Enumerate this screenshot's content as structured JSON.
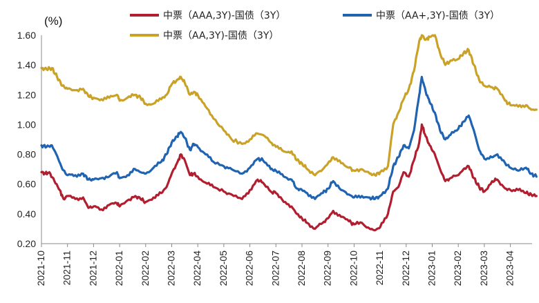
{
  "chart_data": {
    "type": "line",
    "unit_label": "(%)",
    "ylim": [
      0.2,
      1.6
    ],
    "yticks": [
      "0.20",
      "0.40",
      "0.60",
      "0.80",
      "1.00",
      "1.20",
      "1.40",
      "1.60"
    ],
    "x_categories": [
      "2021-10",
      "2021-11",
      "2021-12",
      "2022-01",
      "2022-02",
      "2022-03",
      "2022-04",
      "2022-05",
      "2022-06",
      "2022-07",
      "2022-08",
      "2022-09",
      "2022-10",
      "2022-11",
      "2022-12",
      "2023-01",
      "2023-02",
      "2023-03",
      "2023-04"
    ],
    "grid": false,
    "legend_position": "top",
    "series": [
      {
        "name": "中票（AAA,3Y)-国债（3Y）",
        "color": "#B01E2F",
        "points": [
          [
            0,
            0.68
          ],
          [
            0.15,
            0.67
          ],
          [
            0.3,
            0.68
          ],
          [
            0.5,
            0.62
          ],
          [
            0.7,
            0.56
          ],
          [
            0.85,
            0.5
          ],
          [
            1.0,
            0.52
          ],
          [
            1.3,
            0.5
          ],
          [
            1.6,
            0.51
          ],
          [
            1.8,
            0.44
          ],
          [
            2.0,
            0.45
          ],
          [
            2.3,
            0.43
          ],
          [
            2.6,
            0.46
          ],
          [
            2.9,
            0.47
          ],
          [
            3.0,
            0.45
          ],
          [
            3.3,
            0.49
          ],
          [
            3.6,
            0.52
          ],
          [
            3.8,
            0.5
          ],
          [
            4.0,
            0.48
          ],
          [
            4.3,
            0.51
          ],
          [
            4.6,
            0.54
          ],
          [
            4.8,
            0.58
          ],
          [
            5.0,
            0.67
          ],
          [
            5.2,
            0.74
          ],
          [
            5.35,
            0.8
          ],
          [
            5.5,
            0.76
          ],
          [
            5.7,
            0.66
          ],
          [
            5.85,
            0.67
          ],
          [
            6.0,
            0.65
          ],
          [
            6.3,
            0.61
          ],
          [
            6.6,
            0.58
          ],
          [
            7.0,
            0.55
          ],
          [
            7.3,
            0.53
          ],
          [
            7.7,
            0.5
          ],
          [
            8.0,
            0.56
          ],
          [
            8.3,
            0.63
          ],
          [
            8.5,
            0.61
          ],
          [
            8.8,
            0.55
          ],
          [
            9.0,
            0.54
          ],
          [
            9.3,
            0.48
          ],
          [
            9.6,
            0.45
          ],
          [
            9.8,
            0.4
          ],
          [
            10.0,
            0.37
          ],
          [
            10.2,
            0.34
          ],
          [
            10.5,
            0.3
          ],
          [
            10.8,
            0.34
          ],
          [
            11.0,
            0.37
          ],
          [
            11.2,
            0.42
          ],
          [
            11.5,
            0.38
          ],
          [
            11.8,
            0.35
          ],
          [
            12.0,
            0.33
          ],
          [
            12.3,
            0.34
          ],
          [
            12.6,
            0.3
          ],
          [
            12.8,
            0.29
          ],
          [
            13.0,
            0.31
          ],
          [
            13.3,
            0.4
          ],
          [
            13.5,
            0.55
          ],
          [
            13.7,
            0.58
          ],
          [
            13.9,
            0.68
          ],
          [
            14.1,
            0.65
          ],
          [
            14.3,
            0.76
          ],
          [
            14.5,
            0.88
          ],
          [
            14.6,
            1.0
          ],
          [
            14.75,
            0.92
          ],
          [
            14.9,
            0.86
          ],
          [
            15.1,
            0.8
          ],
          [
            15.3,
            0.7
          ],
          [
            15.5,
            0.62
          ],
          [
            15.7,
            0.64
          ],
          [
            16.0,
            0.66
          ],
          [
            16.2,
            0.7
          ],
          [
            16.4,
            0.72
          ],
          [
            16.6,
            0.64
          ],
          [
            16.8,
            0.58
          ],
          [
            17.0,
            0.55
          ],
          [
            17.3,
            0.62
          ],
          [
            17.5,
            0.63
          ],
          [
            17.8,
            0.57
          ],
          [
            18.0,
            0.56
          ],
          [
            18.3,
            0.56
          ],
          [
            18.6,
            0.54
          ],
          [
            18.8,
            0.53
          ],
          [
            19.0,
            0.52
          ]
        ]
      },
      {
        "name": "中票（AA+,3Y)-国债（3Y）",
        "color": "#1F63B1",
        "points": [
          [
            0,
            0.86
          ],
          [
            0.2,
            0.85
          ],
          [
            0.4,
            0.86
          ],
          [
            0.6,
            0.79
          ],
          [
            0.8,
            0.7
          ],
          [
            1.0,
            0.66
          ],
          [
            1.3,
            0.66
          ],
          [
            1.6,
            0.67
          ],
          [
            1.8,
            0.63
          ],
          [
            2.0,
            0.63
          ],
          [
            2.3,
            0.64
          ],
          [
            2.6,
            0.65
          ],
          [
            2.9,
            0.68
          ],
          [
            3.0,
            0.64
          ],
          [
            3.3,
            0.66
          ],
          [
            3.6,
            0.7
          ],
          [
            3.8,
            0.68
          ],
          [
            4.0,
            0.67
          ],
          [
            4.3,
            0.71
          ],
          [
            4.6,
            0.75
          ],
          [
            4.8,
            0.8
          ],
          [
            5.0,
            0.88
          ],
          [
            5.2,
            0.92
          ],
          [
            5.35,
            0.95
          ],
          [
            5.5,
            0.91
          ],
          [
            5.7,
            0.83
          ],
          [
            5.85,
            0.87
          ],
          [
            6.0,
            0.85
          ],
          [
            6.3,
            0.8
          ],
          [
            6.6,
            0.75
          ],
          [
            7.0,
            0.72
          ],
          [
            7.3,
            0.7
          ],
          [
            7.7,
            0.67
          ],
          [
            8.0,
            0.71
          ],
          [
            8.3,
            0.77
          ],
          [
            8.5,
            0.76
          ],
          [
            8.8,
            0.7
          ],
          [
            9.0,
            0.69
          ],
          [
            9.3,
            0.65
          ],
          [
            9.6,
            0.63
          ],
          [
            9.8,
            0.57
          ],
          [
            10.0,
            0.56
          ],
          [
            10.2,
            0.54
          ],
          [
            10.5,
            0.5
          ],
          [
            10.8,
            0.54
          ],
          [
            11.0,
            0.57
          ],
          [
            11.2,
            0.62
          ],
          [
            11.5,
            0.56
          ],
          [
            11.8,
            0.53
          ],
          [
            12.0,
            0.51
          ],
          [
            12.3,
            0.52
          ],
          [
            12.6,
            0.51
          ],
          [
            12.8,
            0.5
          ],
          [
            13.0,
            0.52
          ],
          [
            13.3,
            0.57
          ],
          [
            13.5,
            0.72
          ],
          [
            13.7,
            0.78
          ],
          [
            13.9,
            0.86
          ],
          [
            14.1,
            0.84
          ],
          [
            14.3,
            0.96
          ],
          [
            14.5,
            1.2
          ],
          [
            14.6,
            1.32
          ],
          [
            14.75,
            1.22
          ],
          [
            14.9,
            1.15
          ],
          [
            15.1,
            1.08
          ],
          [
            15.3,
            0.96
          ],
          [
            15.5,
            0.9
          ],
          [
            15.7,
            0.93
          ],
          [
            16.0,
            0.97
          ],
          [
            16.2,
            1.02
          ],
          [
            16.4,
            1.06
          ],
          [
            16.6,
            0.96
          ],
          [
            16.8,
            0.83
          ],
          [
            17.0,
            0.77
          ],
          [
            17.3,
            0.78
          ],
          [
            17.5,
            0.8
          ],
          [
            17.8,
            0.74
          ],
          [
            18.0,
            0.71
          ],
          [
            18.3,
            0.69
          ],
          [
            18.6,
            0.71
          ],
          [
            18.8,
            0.67
          ],
          [
            19.0,
            0.65
          ]
        ]
      },
      {
        "name": "中票（AA,3Y)-国债（3Y）",
        "color": "#C9A227",
        "points": [
          [
            0,
            1.38
          ],
          [
            0.2,
            1.37
          ],
          [
            0.4,
            1.38
          ],
          [
            0.6,
            1.32
          ],
          [
            0.8,
            1.26
          ],
          [
            1.0,
            1.24
          ],
          [
            1.3,
            1.23
          ],
          [
            1.6,
            1.24
          ],
          [
            1.8,
            1.19
          ],
          [
            2.0,
            1.18
          ],
          [
            2.3,
            1.17
          ],
          [
            2.6,
            1.18
          ],
          [
            2.9,
            1.2
          ],
          [
            3.0,
            1.16
          ],
          [
            3.3,
            1.18
          ],
          [
            3.6,
            1.2
          ],
          [
            3.8,
            1.18
          ],
          [
            4.0,
            1.14
          ],
          [
            4.3,
            1.14
          ],
          [
            4.6,
            1.17
          ],
          [
            4.8,
            1.2
          ],
          [
            5.0,
            1.27
          ],
          [
            5.2,
            1.3
          ],
          [
            5.35,
            1.32
          ],
          [
            5.5,
            1.28
          ],
          [
            5.7,
            1.2
          ],
          [
            5.85,
            1.22
          ],
          [
            6.0,
            1.2
          ],
          [
            6.3,
            1.12
          ],
          [
            6.6,
            1.04
          ],
          [
            7.0,
            0.96
          ],
          [
            7.3,
            0.9
          ],
          [
            7.7,
            0.87
          ],
          [
            8.0,
            0.9
          ],
          [
            8.3,
            0.94
          ],
          [
            8.5,
            0.93
          ],
          [
            8.8,
            0.88
          ],
          [
            9.0,
            0.85
          ],
          [
            9.3,
            0.82
          ],
          [
            9.6,
            0.82
          ],
          [
            9.8,
            0.76
          ],
          [
            10.0,
            0.74
          ],
          [
            10.2,
            0.7
          ],
          [
            10.5,
            0.66
          ],
          [
            10.8,
            0.7
          ],
          [
            11.0,
            0.74
          ],
          [
            11.2,
            0.78
          ],
          [
            11.5,
            0.74
          ],
          [
            11.8,
            0.71
          ],
          [
            12.0,
            0.69
          ],
          [
            12.3,
            0.7
          ],
          [
            12.6,
            0.67
          ],
          [
            12.8,
            0.66
          ],
          [
            13.0,
            0.68
          ],
          [
            13.3,
            0.72
          ],
          [
            13.5,
            1.0
          ],
          [
            13.7,
            1.08
          ],
          [
            13.9,
            1.17
          ],
          [
            14.1,
            1.24
          ],
          [
            14.3,
            1.36
          ],
          [
            14.5,
            1.56
          ],
          [
            14.6,
            1.6
          ],
          [
            14.75,
            1.57
          ],
          [
            14.9,
            1.59
          ],
          [
            15.1,
            1.6
          ],
          [
            15.3,
            1.48
          ],
          [
            15.5,
            1.4
          ],
          [
            15.7,
            1.43
          ],
          [
            16.0,
            1.44
          ],
          [
            16.2,
            1.48
          ],
          [
            16.4,
            1.5
          ],
          [
            16.6,
            1.4
          ],
          [
            16.8,
            1.3
          ],
          [
            17.0,
            1.26
          ],
          [
            17.3,
            1.25
          ],
          [
            17.5,
            1.24
          ],
          [
            17.8,
            1.16
          ],
          [
            18.0,
            1.13
          ],
          [
            18.3,
            1.12
          ],
          [
            18.6,
            1.13
          ],
          [
            18.8,
            1.1
          ],
          [
            19.0,
            1.1
          ]
        ]
      }
    ]
  }
}
